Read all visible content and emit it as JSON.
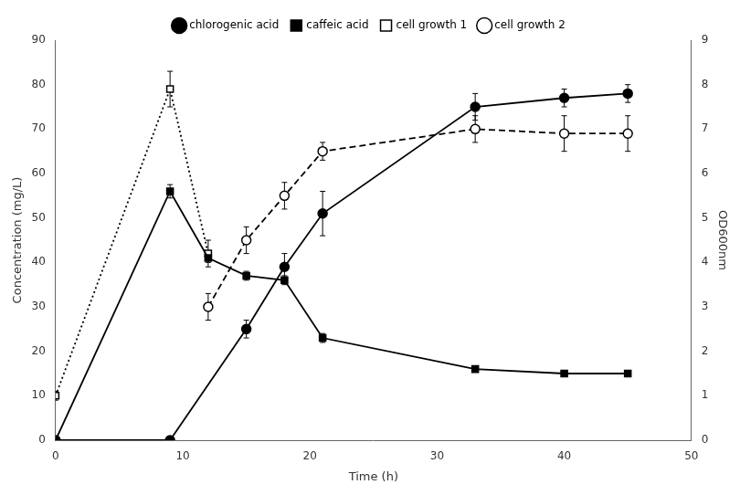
{
  "chart_data": {
    "type": "line",
    "xlabel": "Time (h)",
    "ylabel": "Concentration (mg/L)",
    "y2label": "OD600nm",
    "xlim": [
      0,
      50
    ],
    "xticks": [
      0,
      10,
      20,
      30,
      40,
      50
    ],
    "ylim": [
      0,
      90
    ],
    "yticks": [
      0,
      10,
      20,
      30,
      40,
      50,
      60,
      70,
      80,
      90
    ],
    "y2lim": [
      0,
      9
    ],
    "y2ticks": [
      0,
      1,
      2,
      3,
      4,
      5,
      6,
      7,
      8,
      9
    ],
    "grid": false,
    "legend": "top",
    "series": [
      {
        "name": "chlorogenic acid",
        "color": "#000000",
        "marker": "circle",
        "line_style": "solid",
        "x": [
          0,
          9,
          15,
          18,
          21,
          33,
          40,
          45
        ],
        "values": [
          0,
          0,
          25,
          39,
          51,
          75,
          77,
          78
        ],
        "yerr": [
          0,
          0.5,
          2,
          3,
          5,
          3,
          2,
          2
        ]
      },
      {
        "name": "caffeic acid",
        "color": "#000000",
        "marker": "square",
        "line_style": "solid",
        "x": [
          0,
          9,
          12,
          15,
          18,
          21,
          33,
          40,
          45
        ],
        "values": [
          0,
          56,
          41,
          37,
          36,
          23,
          16,
          15,
          15
        ],
        "yerr": [
          0,
          1.5,
          1,
          1,
          1,
          1,
          0.5,
          0.5,
          0.5
        ]
      },
      {
        "name": "cell growth 1",
        "color": "#000000",
        "marker": "open_square",
        "line_style": "dotted",
        "x": [
          0,
          9,
          12
        ],
        "values": [
          10,
          79,
          42
        ],
        "yerr": [
          1,
          4,
          3
        ]
      },
      {
        "name": "cell growth 2",
        "color": "#000000",
        "marker": "open_circle",
        "line_style": "dashed",
        "x": [
          12,
          15,
          18,
          21,
          33,
          40,
          45
        ],
        "values": [
          30,
          45,
          55,
          65,
          70,
          69,
          69
        ],
        "yerr": [
          3,
          3,
          3,
          2,
          3,
          4,
          4
        ]
      }
    ]
  }
}
